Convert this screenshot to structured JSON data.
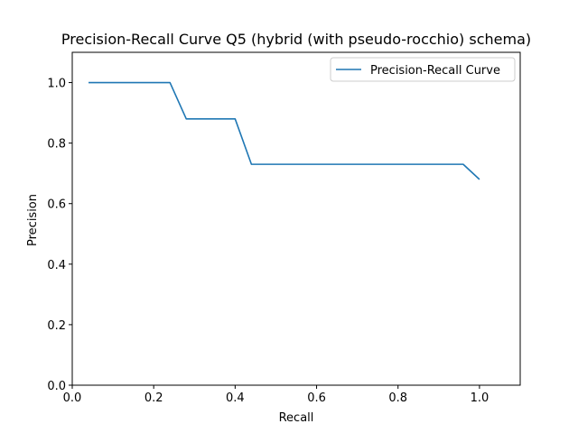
{
  "chart_data": {
    "type": "line",
    "title": "Precision-Recall Curve Q5 (hybrid (with pseudo-rocchio) schema)",
    "xlabel": "Recall",
    "ylabel": "Precision",
    "xlim": [
      0.0,
      1.1
    ],
    "ylim": [
      0.0,
      1.1
    ],
    "xticks": [
      0.0,
      0.2,
      0.4,
      0.6,
      0.8,
      1.0
    ],
    "yticks": [
      0.0,
      0.2,
      0.4,
      0.6,
      0.8,
      1.0
    ],
    "xtick_labels": [
      "0.0",
      "0.2",
      "0.4",
      "0.6",
      "0.8",
      "1.0"
    ],
    "ytick_labels": [
      "0.0",
      "0.2",
      "0.4",
      "0.6",
      "0.8",
      "1.0"
    ],
    "grid": false,
    "legend_position": "top-right",
    "series": [
      {
        "name": "Precision-Recall Curve",
        "color": "#1f77b4",
        "x": [
          0.04,
          0.24,
          0.28,
          0.4,
          0.44,
          0.96,
          1.0
        ],
        "y": [
          1.0,
          1.0,
          0.88,
          0.88,
          0.73,
          0.73,
          0.68
        ]
      }
    ]
  }
}
